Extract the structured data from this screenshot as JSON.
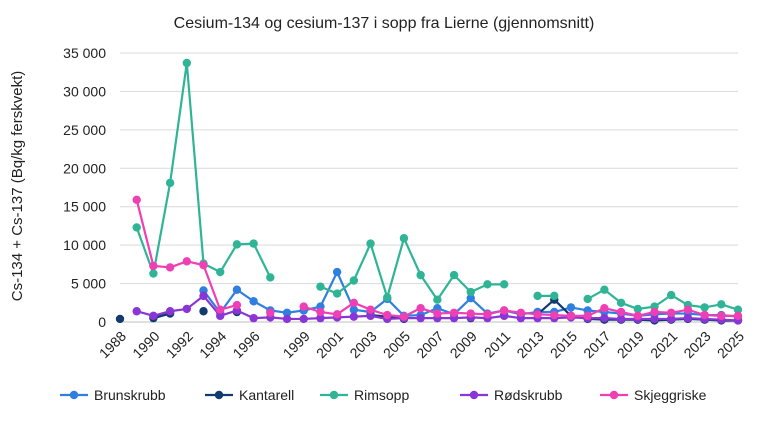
{
  "chart_data": {
    "type": "line",
    "title": "Cesium-134 og cesium-137 i sopp fra Lierne (gjennomsnitt)",
    "xlabel": "",
    "ylabel": "Cs-134 + Cs-137 (Bq/kg ferskvekt)",
    "ylim": [
      0,
      35000
    ],
    "yticks": [
      "0",
      "5 000",
      "10 000",
      "15 000",
      "20 000",
      "25 000",
      "30 000",
      "35 000"
    ],
    "xlim": [
      1988,
      2025
    ],
    "xticks": [
      "1988",
      "1990",
      "1992",
      "1994",
      "1996",
      "1999",
      "2001",
      "2003",
      "2005",
      "2007",
      "2009",
      "2011",
      "2013",
      "2015",
      "2017",
      "2019",
      "2021",
      "2023",
      "2025"
    ],
    "grid": true,
    "legend": "bottom",
    "series": [
      {
        "name": "Brunskrubb",
        "color": "#2f7fe0",
        "points": [
          [
            1990,
            700
          ],
          [
            1991,
            1200
          ],
          [
            1993,
            4100
          ],
          [
            1994,
            1200
          ],
          [
            1995,
            4200
          ],
          [
            1996,
            2700
          ],
          [
            1997,
            1500
          ],
          [
            1998,
            1200
          ],
          [
            1999,
            1500
          ],
          [
            2000,
            2000
          ],
          [
            2001,
            6500
          ],
          [
            2002,
            1600
          ],
          [
            2003,
            1300
          ],
          [
            2004,
            3000
          ],
          [
            2005,
            800
          ],
          [
            2006,
            900
          ],
          [
            2007,
            1800
          ],
          [
            2008,
            1000
          ],
          [
            2009,
            3100
          ],
          [
            2010,
            1100
          ],
          [
            2011,
            1500
          ],
          [
            2012,
            1000
          ],
          [
            2013,
            1300
          ],
          [
            2014,
            1300
          ],
          [
            2015,
            1900
          ],
          [
            2016,
            1500
          ],
          [
            2017,
            1300
          ],
          [
            2018,
            1100
          ],
          [
            2019,
            800
          ],
          [
            2020,
            1000
          ],
          [
            2021,
            1100
          ],
          [
            2022,
            1100
          ],
          [
            2023,
            900
          ],
          [
            2024,
            900
          ],
          [
            2025,
            700
          ]
        ]
      },
      {
        "name": "Kantarell",
        "color": "#123a6e",
        "points": [
          [
            1988,
            400
          ],
          [
            1990,
            500
          ],
          [
            1991,
            1100
          ],
          [
            1993,
            1400
          ],
          [
            1995,
            1300
          ],
          [
            2003,
            900
          ],
          [
            2004,
            700
          ],
          [
            2005,
            400
          ],
          [
            2009,
            500
          ],
          [
            2011,
            900
          ],
          [
            2013,
            1000
          ],
          [
            2014,
            2900
          ],
          [
            2015,
            800
          ],
          [
            2016,
            400
          ],
          [
            2017,
            300
          ],
          [
            2018,
            300
          ],
          [
            2019,
            300
          ],
          [
            2020,
            200
          ],
          [
            2021,
            300
          ],
          [
            2022,
            400
          ],
          [
            2023,
            300
          ],
          [
            2024,
            200
          ],
          [
            2025,
            200
          ]
        ]
      },
      {
        "name": "Rimsopp",
        "color": "#2fb596",
        "points": [
          [
            1989,
            12300
          ],
          [
            1990,
            6300
          ],
          [
            1991,
            18100
          ],
          [
            1992,
            33700
          ],
          [
            1993,
            7600
          ],
          [
            1994,
            6500
          ],
          [
            1995,
            10100
          ],
          [
            1996,
            10200
          ],
          [
            1997,
            5800
          ],
          [
            2000,
            4600
          ],
          [
            2001,
            3700
          ],
          [
            2002,
            5400
          ],
          [
            2003,
            10200
          ],
          [
            2004,
            3200
          ],
          [
            2005,
            10900
          ],
          [
            2006,
            6100
          ],
          [
            2007,
            2900
          ],
          [
            2008,
            6100
          ],
          [
            2009,
            3900
          ],
          [
            2010,
            4900
          ],
          [
            2011,
            4900
          ],
          [
            2013,
            3400
          ],
          [
            2014,
            3400
          ],
          [
            2016,
            3000
          ],
          [
            2017,
            4200
          ],
          [
            2018,
            2500
          ],
          [
            2019,
            1700
          ],
          [
            2020,
            2000
          ],
          [
            2021,
            3500
          ],
          [
            2022,
            2200
          ],
          [
            2023,
            1900
          ],
          [
            2024,
            2300
          ],
          [
            2025,
            1600
          ]
        ]
      },
      {
        "name": "Rødskrubb",
        "color": "#8a35d6",
        "points": [
          [
            1989,
            1400
          ],
          [
            1990,
            800
          ],
          [
            1991,
            1400
          ],
          [
            1992,
            1700
          ],
          [
            1993,
            3400
          ],
          [
            1994,
            800
          ],
          [
            1995,
            1500
          ],
          [
            1996,
            500
          ],
          [
            1997,
            600
          ],
          [
            1998,
            400
          ],
          [
            1999,
            400
          ],
          [
            2000,
            500
          ],
          [
            2001,
            600
          ],
          [
            2002,
            700
          ],
          [
            2003,
            800
          ],
          [
            2004,
            400
          ],
          [
            2005,
            500
          ],
          [
            2006,
            500
          ],
          [
            2007,
            500
          ],
          [
            2008,
            500
          ],
          [
            2009,
            600
          ],
          [
            2010,
            500
          ],
          [
            2011,
            800
          ],
          [
            2012,
            500
          ],
          [
            2013,
            500
          ],
          [
            2014,
            500
          ],
          [
            2015,
            600
          ],
          [
            2016,
            500
          ],
          [
            2017,
            500
          ],
          [
            2018,
            400
          ],
          [
            2019,
            400
          ],
          [
            2020,
            400
          ],
          [
            2021,
            400
          ],
          [
            2022,
            500
          ],
          [
            2023,
            400
          ],
          [
            2024,
            300
          ],
          [
            2025,
            200
          ]
        ]
      },
      {
        "name": "Skjeggriske",
        "color": "#ef3fb4",
        "points": [
          [
            1989,
            15900
          ],
          [
            1990,
            7300
          ],
          [
            1991,
            7100
          ],
          [
            1992,
            7900
          ],
          [
            1993,
            7400
          ],
          [
            1994,
            1600
          ],
          [
            1995,
            2200
          ],
          [
            1997,
            1200
          ],
          [
            1999,
            2000
          ],
          [
            2000,
            1300
          ],
          [
            2001,
            1000
          ],
          [
            2002,
            2500
          ],
          [
            2003,
            1600
          ],
          [
            2004,
            900
          ],
          [
            2005,
            700
          ],
          [
            2006,
            1800
          ],
          [
            2007,
            1100
          ],
          [
            2008,
            1200
          ],
          [
            2009,
            1100
          ],
          [
            2010,
            1000
          ],
          [
            2011,
            1500
          ],
          [
            2012,
            1200
          ],
          [
            2013,
            1000
          ],
          [
            2014,
            900
          ],
          [
            2015,
            800
          ],
          [
            2016,
            800
          ],
          [
            2017,
            1800
          ],
          [
            2018,
            1300
          ],
          [
            2019,
            800
          ],
          [
            2020,
            1300
          ],
          [
            2021,
            1200
          ],
          [
            2022,
            1600
          ],
          [
            2023,
            900
          ],
          [
            2024,
            800
          ],
          [
            2025,
            800
          ]
        ]
      }
    ]
  }
}
